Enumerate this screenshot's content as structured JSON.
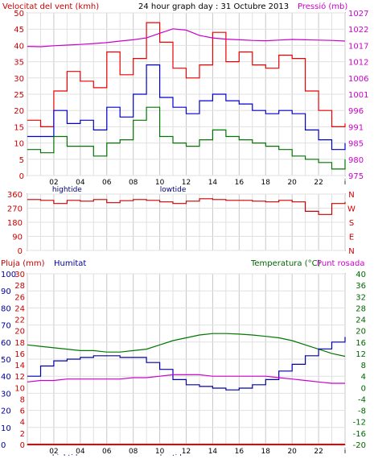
{
  "header": {
    "left_title": "Velocitat del vent (kmh)",
    "center_title": "24 hour graph day : 31 Octubre 2013",
    "right_title": "Pressió (mb)"
  },
  "bottom_header": {
    "rain_label": "Pluja (mm)",
    "humidity_label": "Humitat",
    "temp_label": "Temperatura (°C)",
    "dew_label": "Punt rosada"
  },
  "tide_labels": {
    "high": "hightide",
    "low": "lowtide"
  },
  "hour_labels": [
    "02",
    "04",
    "06",
    "08",
    "10",
    "12",
    "14",
    "16",
    "18",
    "20",
    "22",
    "i"
  ],
  "colors": {
    "background": "#ffffff",
    "plot_bg": "#ffffff",
    "grid_major": "#c8c8c8",
    "grid_minor": "#e0e0e0",
    "axis_left": "#cc0000",
    "axis_right": "#cc00cc",
    "gust": "#ee0000",
    "wind_avg": "#0000cc",
    "wind_green": "#007700",
    "pressure": "#cc00cc",
    "direction": "#cc0000",
    "humidity": "#0000aa",
    "temperature": "#007700",
    "dewpoint": "#cc00cc",
    "rain": "#ee0000",
    "humidity_label": "#000099",
    "temp_label": "#006600"
  },
  "chart_data": [
    {
      "name": "wind",
      "type": "line",
      "ylabel_left": "Velocitat del vent (kmh)",
      "ylabel_right": "Pressió (mb)",
      "ylim_left": [
        0,
        50
      ],
      "ylim_right": [
        975,
        1027
      ],
      "yticks_left": [
        "0",
        "5",
        "10",
        "15",
        "20",
        "25",
        "30",
        "35",
        "40",
        "45",
        "50"
      ],
      "yticks_right": [
        "975",
        "980",
        "985",
        "991",
        "996",
        "1001",
        "1006",
        "1012",
        "1017",
        "1022",
        "1027"
      ],
      "x": [
        0,
        1,
        2,
        3,
        4,
        5,
        6,
        7,
        8,
        9,
        10,
        11,
        12,
        13,
        14,
        15,
        16,
        17,
        18,
        19,
        20,
        21,
        22,
        23,
        24
      ],
      "series": [
        {
          "key": "gust",
          "values": [
            17,
            15,
            26,
            32,
            29,
            27,
            38,
            31,
            36,
            47,
            41,
            33,
            30,
            34,
            44,
            35,
            38,
            34,
            33,
            37,
            36,
            26,
            20,
            15,
            16
          ]
        },
        {
          "key": "avg",
          "values": [
            12,
            12,
            20,
            16,
            17,
            14,
            21,
            18,
            25,
            34,
            24,
            21,
            19,
            23,
            25,
            23,
            22,
            20,
            19,
            20,
            19,
            14,
            11,
            8,
            10
          ]
        },
        {
          "key": "green",
          "values": [
            8,
            7,
            12,
            9,
            9,
            6,
            10,
            11,
            17,
            21,
            12,
            10,
            9,
            11,
            14,
            12,
            11,
            10,
            9,
            8,
            6,
            5,
            4,
            2,
            5
          ]
        },
        {
          "key": "pressure",
          "values": [
            1016.3,
            1016.2,
            1016.5,
            1016.7,
            1016.9,
            1017.2,
            1017.5,
            1018.0,
            1018.4,
            1019.0,
            1020.5,
            1021.9,
            1021.5,
            1019.8,
            1019.0,
            1018.6,
            1018.4,
            1018.2,
            1018.1,
            1018.3,
            1018.5,
            1018.4,
            1018.3,
            1018.2,
            1018.0
          ]
        }
      ]
    },
    {
      "name": "direction",
      "type": "line",
      "ylim": [
        0,
        360
      ],
      "yticks": [
        "0",
        "90",
        "180",
        "270",
        "360"
      ],
      "compass": [
        "N",
        "W",
        "S",
        "E",
        "N"
      ],
      "x": [
        0,
        1,
        2,
        3,
        4,
        5,
        6,
        7,
        8,
        9,
        10,
        11,
        12,
        13,
        14,
        15,
        16,
        17,
        18,
        19,
        20,
        21,
        22,
        23,
        24
      ],
      "values": [
        325,
        320,
        300,
        320,
        315,
        325,
        305,
        318,
        325,
        320,
        310,
        300,
        315,
        330,
        325,
        320,
        320,
        315,
        310,
        320,
        310,
        250,
        230,
        300,
        310
      ]
    },
    {
      "name": "temperature_humidity",
      "type": "line",
      "ylim_rain": [
        0,
        30
      ],
      "ylim_humidity": [
        0,
        100
      ],
      "ylim_temp": [
        -20,
        40
      ],
      "yticks_rain": [
        "0",
        "2",
        "4",
        "6",
        "8",
        "10",
        "12",
        "14",
        "16",
        "18",
        "20",
        "22",
        "24",
        "26",
        "28",
        "30"
      ],
      "yticks_humidity": [
        "0",
        "10",
        "20",
        "30",
        "40",
        "50",
        "60",
        "70",
        "80",
        "90",
        "100"
      ],
      "yticks_temp": [
        "-20",
        "-16",
        "-12",
        "-8",
        "-4",
        "0",
        "4",
        "8",
        "12",
        "16",
        "20",
        "24",
        "28",
        "32",
        "36",
        "40"
      ],
      "x": [
        0,
        1,
        2,
        3,
        4,
        5,
        6,
        7,
        8,
        9,
        10,
        11,
        12,
        13,
        14,
        15,
        16,
        17,
        18,
        19,
        20,
        21,
        22,
        23,
        24
      ],
      "series": [
        {
          "key": "temperature",
          "values": [
            15,
            14.5,
            14,
            13.5,
            13,
            13,
            12.5,
            12.5,
            13,
            13.5,
            15,
            16.5,
            17.5,
            18.5,
            19,
            19,
            18.8,
            18.5,
            18,
            17.5,
            16.5,
            15,
            13.5,
            12,
            11
          ]
        },
        {
          "key": "humidity",
          "values": [
            40,
            46,
            49,
            50,
            51,
            52,
            52,
            51,
            51,
            48,
            44,
            38,
            35,
            34,
            33,
            32,
            33,
            35,
            38,
            43,
            47,
            52,
            56,
            60,
            63
          ]
        },
        {
          "key": "dewpoint",
          "values": [
            2,
            2.5,
            2.5,
            3,
            3,
            3,
            3,
            3,
            3.5,
            3.5,
            4,
            4.5,
            4.5,
            4.5,
            4,
            4,
            4,
            4,
            4,
            3.5,
            3,
            2.5,
            2,
            1.5,
            1.5
          ]
        },
        {
          "key": "rain",
          "values": [
            0,
            0,
            0,
            0,
            0,
            0,
            0,
            0,
            0,
            0,
            0,
            0,
            0,
            0,
            0,
            0,
            0,
            0,
            0,
            0,
            0,
            0,
            0,
            0,
            0
          ]
        }
      ]
    }
  ]
}
